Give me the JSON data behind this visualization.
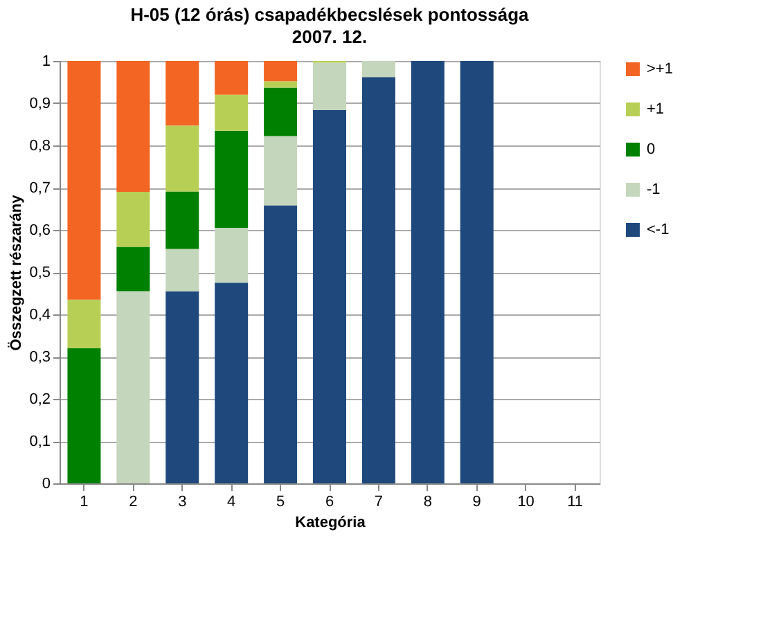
{
  "chart_data": {
    "type": "bar",
    "stacked": true,
    "title": "H-05 (12 órás) csapadékbecslések pontossága",
    "subtitle": "2007. 12.",
    "xlabel": "Kategória",
    "ylabel": "Összegzett részarány",
    "categories": [
      "1",
      "2",
      "3",
      "4",
      "5",
      "6",
      "7",
      "8",
      "9",
      "10",
      "11"
    ],
    "series": [
      {
        "name": "<-1",
        "color": "#1f497d",
        "values": [
          0,
          0,
          0.455,
          0.475,
          0.658,
          0.884,
          0.962,
          1,
          1,
          null,
          null
        ]
      },
      {
        "name": "-1",
        "color": "#c4d6bb",
        "values": [
          0,
          0.455,
          0.1,
          0.13,
          0.164,
          0.112,
          0.038,
          0,
          0,
          null,
          null
        ]
      },
      {
        "name": "0",
        "color": "#008000",
        "values": [
          0.32,
          0.105,
          0.136,
          0.23,
          0.115,
          0,
          0,
          0,
          0,
          null,
          null
        ]
      },
      {
        "name": "+1",
        "color": "#b8cf55",
        "values": [
          0.115,
          0.13,
          0.156,
          0.085,
          0.015,
          0.004,
          0,
          0,
          0,
          null,
          null
        ]
      },
      {
        "name": ">+1",
        "color": "#f26522",
        "values": [
          0.565,
          0.31,
          0.153,
          0.08,
          0.048,
          0,
          0,
          0,
          0,
          null,
          null
        ]
      }
    ],
    "ylim": [
      0,
      1
    ],
    "yticks": [
      0,
      {
        "value": 0.1,
        "label": "0,1"
      },
      {
        "value": 0.2,
        "label": "0,2"
      },
      {
        "value": 0.3,
        "label": "0,3"
      },
      {
        "value": 0.4,
        "label": "0,4"
      },
      {
        "value": 0.5,
        "label": "0,5"
      },
      {
        "value": 0.6,
        "label": "0,6"
      },
      {
        "value": 0.7,
        "label": "0,7"
      },
      {
        "value": 0.8,
        "label": "0,8"
      },
      {
        "value": 0.9,
        "label": "0,9"
      },
      1
    ],
    "grid": "y",
    "legend": "right"
  }
}
